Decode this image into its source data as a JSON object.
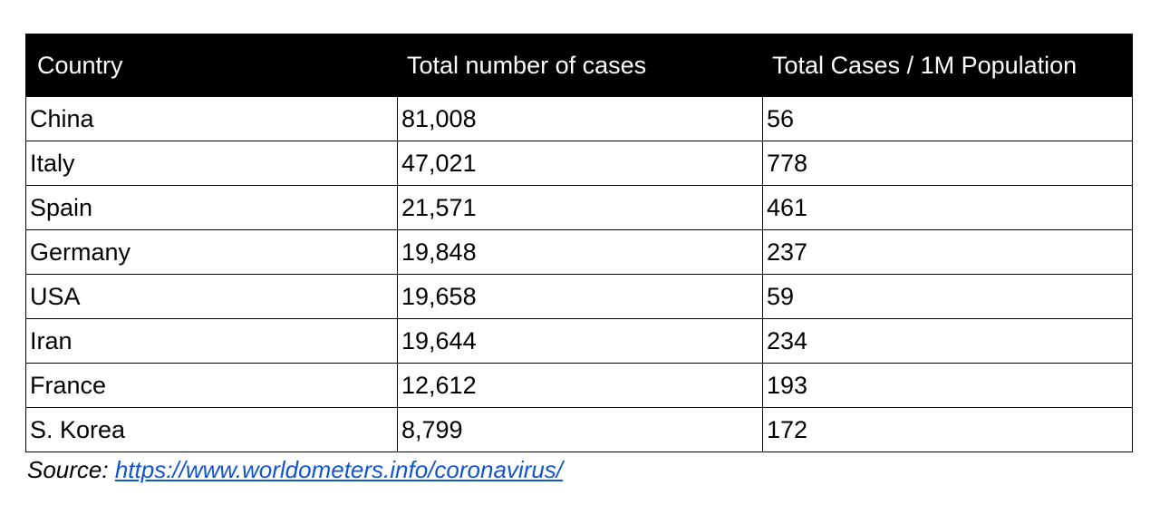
{
  "table": {
    "headers": [
      "Country",
      "Total number of cases",
      "Total Cases / 1M Population"
    ],
    "rows": [
      [
        "China",
        "81,008",
        "56"
      ],
      [
        "Italy",
        "47,021",
        "778"
      ],
      [
        "Spain",
        "21,571",
        "461"
      ],
      [
        "Germany",
        "19,848",
        "237"
      ],
      [
        "USA",
        "19,658",
        "59"
      ],
      [
        "Iran",
        "19,644",
        "234"
      ],
      [
        "France",
        "12,612",
        "193"
      ],
      [
        "S. Korea",
        "8,799",
        "172"
      ]
    ]
  },
  "source": {
    "label": "Source:",
    "link_text": "https://www.worldometers.info/coronavirus/",
    "link_color": "#1155cc"
  },
  "colors": {
    "header_bg": "#000000",
    "header_text": "#ffffff",
    "border": "#000000"
  }
}
